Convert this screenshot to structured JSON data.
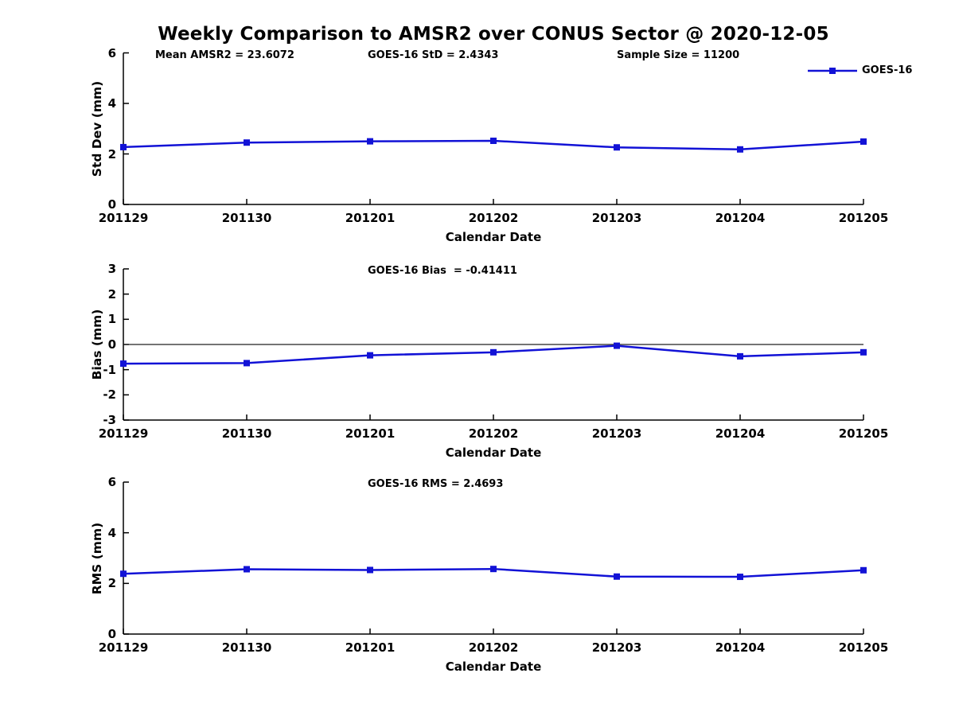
{
  "title": "Weekly Comparison to AMSR2 over CONUS Sector @ 2020-12-05",
  "legend": {
    "label": "GOES-16",
    "position": "top-right"
  },
  "colors": {
    "series": "#1212d6",
    "axis": "#000000",
    "zero_line": "#222222",
    "text": "#000000",
    "background": "#ffffff"
  },
  "chart_data": [
    {
      "type": "line",
      "title": "",
      "categories": [
        "201129",
        "201130",
        "201201",
        "201202",
        "201203",
        "201204",
        "201205"
      ],
      "series": [
        {
          "name": "GOES-16",
          "values": [
            2.27,
            2.45,
            2.5,
            2.52,
            2.26,
            2.18,
            2.49
          ]
        }
      ],
      "xlabel": "Calendar Date",
      "ylabel": "Std Dev (mm)",
      "ylim": [
        0,
        6
      ],
      "yticks": [
        6,
        4,
        2,
        0
      ],
      "grid": false,
      "zero_line": false,
      "legend_position": "top-right",
      "annotations": [
        "Mean AMSR2 = 23.6072",
        "GOES-16 StD = 2.4343",
        "Sample Size = 11200"
      ]
    },
    {
      "type": "line",
      "title": "",
      "categories": [
        "201129",
        "201130",
        "201201",
        "201202",
        "201203",
        "201204",
        "201205"
      ],
      "series": [
        {
          "name": "GOES-16",
          "values": [
            -0.76,
            -0.74,
            -0.43,
            -0.31,
            -0.05,
            -0.47,
            -0.31
          ]
        }
      ],
      "xlabel": "Calendar Date",
      "ylabel": "Bias (mm)",
      "ylim": [
        -3,
        3
      ],
      "yticks": [
        3,
        2,
        1,
        0,
        -1,
        -2,
        -3
      ],
      "grid": false,
      "zero_line": true,
      "legend_position": "none",
      "annotations": [
        "GOES-16 Bias  = -0.41411"
      ]
    },
    {
      "type": "line",
      "title": "",
      "categories": [
        "201129",
        "201130",
        "201201",
        "201202",
        "201203",
        "201204",
        "201205"
      ],
      "series": [
        {
          "name": "GOES-16",
          "values": [
            2.38,
            2.56,
            2.53,
            2.57,
            2.27,
            2.26,
            2.52
          ]
        }
      ],
      "xlabel": "Calendar Date",
      "ylabel": "RMS (mm)",
      "ylim": [
        0,
        6
      ],
      "yticks": [
        6,
        4,
        2,
        0
      ],
      "grid": false,
      "zero_line": false,
      "legend_position": "none",
      "annotations": [
        "GOES-16 RMS = 2.4693"
      ]
    }
  ]
}
